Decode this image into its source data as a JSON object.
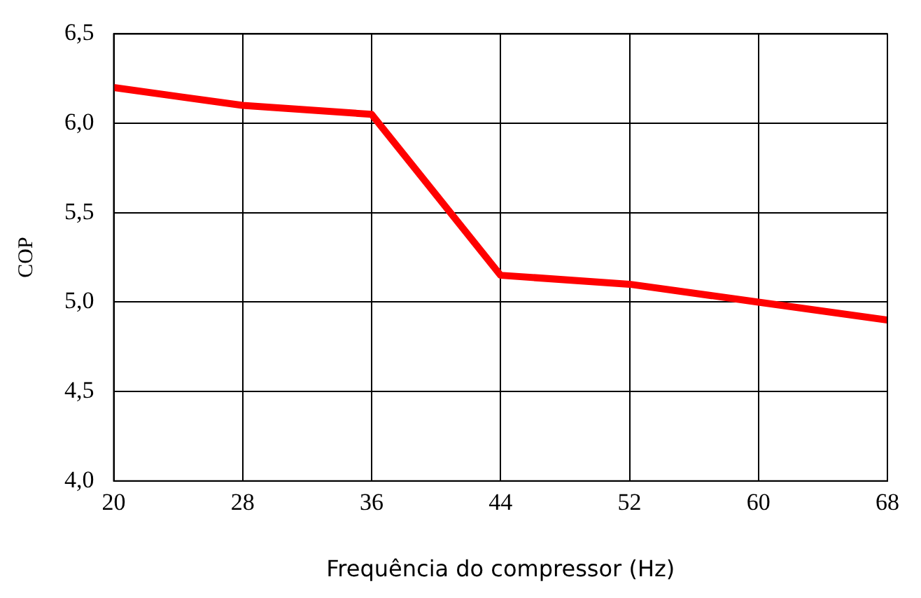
{
  "chart_data": {
    "type": "line",
    "xlabel": "Frequência do compressor (Hz)",
    "ylabel": "COP",
    "x": [
      20,
      28,
      36,
      44,
      52,
      60,
      68
    ],
    "series": [
      {
        "color": "#ff0000",
        "values": [
          6.2,
          6.1,
          6.05,
          5.15,
          5.1,
          5.0,
          4.9
        ]
      }
    ],
    "xlim": [
      20,
      68
    ],
    "xticks": [
      20,
      28,
      36,
      44,
      52,
      60,
      68
    ],
    "ylim": [
      4.0,
      6.5
    ],
    "yticks": [
      {
        "value": 4.0,
        "label": "4,0"
      },
      {
        "value": 4.5,
        "label": "4,5"
      },
      {
        "value": 5.0,
        "label": "5,0"
      },
      {
        "value": 5.5,
        "label": "5,5"
      },
      {
        "value": 6.0,
        "label": "6,0"
      },
      {
        "value": 6.5,
        "label": "6,5"
      }
    ],
    "grid": true,
    "legend": false,
    "marker": "none",
    "line_style": "solid"
  }
}
